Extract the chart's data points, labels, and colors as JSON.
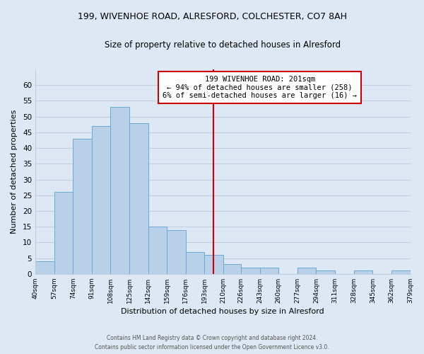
{
  "title": "199, WIVENHOE ROAD, ALRESFORD, COLCHESTER, CO7 8AH",
  "subtitle": "Size of property relative to detached houses in Alresford",
  "xlabel": "Distribution of detached houses by size in Alresford",
  "ylabel": "Number of detached properties",
  "bin_edges": [
    40,
    57,
    74,
    91,
    108,
    125,
    142,
    159,
    176,
    193,
    210,
    226,
    243,
    260,
    277,
    294,
    311,
    328,
    345,
    362,
    379
  ],
  "bin_labels": [
    "40sqm",
    "57sqm",
    "74sqm",
    "91sqm",
    "108sqm",
    "125sqm",
    "142sqm",
    "159sqm",
    "176sqm",
    "193sqm",
    "210sqm",
    "226sqm",
    "243sqm",
    "260sqm",
    "277sqm",
    "294sqm",
    "311sqm",
    "328sqm",
    "345sqm",
    "362sqm",
    "379sqm"
  ],
  "counts": [
    4,
    26,
    43,
    47,
    53,
    48,
    15,
    14,
    7,
    6,
    3,
    2,
    2,
    0,
    2,
    1,
    0,
    1,
    0,
    1
  ],
  "bar_color": "#b8d0e8",
  "bar_edge_color": "#6aaad4",
  "property_value": 201,
  "vline_color": "#cc0000",
  "annotation_title": "199 WIVENHOE ROAD: 201sqm",
  "annotation_line1": "← 94% of detached houses are smaller (258)",
  "annotation_line2": "6% of semi-detached houses are larger (16) →",
  "annotation_box_color": "#ffffff",
  "annotation_box_edge": "#cc0000",
  "footer1": "Contains HM Land Registry data © Crown copyright and database right 2024.",
  "footer2": "Contains public sector information licensed under the Open Government Licence v3.0.",
  "ylim": [
    0,
    65
  ],
  "yticks": [
    0,
    5,
    10,
    15,
    20,
    25,
    30,
    35,
    40,
    45,
    50,
    55,
    60
  ],
  "bg_color": "#dde8f4",
  "plot_bg_color": "#dde8f4",
  "grid_color": "#c0cfe0"
}
